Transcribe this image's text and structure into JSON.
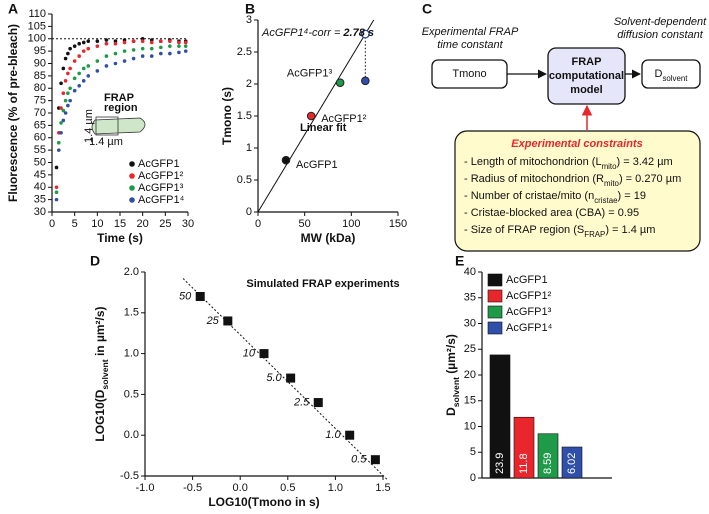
{
  "chart_data": [
    {
      "type": "scatter",
      "panel_label": "A",
      "x_label": "Time (s)",
      "y_label": "Fluorescence (% of pre-bleach)",
      "xlim": [
        0,
        30
      ],
      "xticks": [
        0,
        5,
        10,
        15,
        20,
        25,
        30
      ],
      "ylim": [
        30,
        110
      ],
      "yticks": [
        30,
        35,
        40,
        45,
        50,
        55,
        60,
        65,
        70,
        75,
        80,
        85,
        90,
        95,
        100,
        105,
        110
      ],
      "reference_line": 100,
      "x": [
        1,
        1.5,
        2,
        2.5,
        3,
        3.5,
        4,
        5,
        6,
        7,
        8,
        10,
        12,
        14,
        16,
        18,
        20,
        22,
        24,
        26,
        28,
        29.5
      ],
      "series": [
        {
          "name": "AcGFP1",
          "color": "#111111",
          "values": [
            48,
            72,
            82,
            88,
            92,
            94,
            96,
            97,
            98,
            98.5,
            99,
            99,
            99.5,
            99,
            99.5,
            99,
            100,
            99.5,
            99,
            99.5,
            99,
            99
          ]
        },
        {
          "name": "AcGFP1²",
          "color": "#e8262b",
          "values": [
            40,
            62,
            72,
            78,
            83,
            86,
            88,
            91,
            93,
            95,
            96,
            97,
            98,
            98,
            98.5,
            99,
            99,
            98.5,
            99,
            99,
            98.5,
            98.5
          ]
        },
        {
          "name": "AcGFP1³",
          "color": "#1f9a48",
          "values": [
            38,
            58,
            66,
            71,
            75,
            78,
            80,
            84,
            86,
            88,
            89,
            91,
            93,
            94,
            95,
            95.5,
            96,
            96,
            96.5,
            97,
            97,
            97
          ]
        },
        {
          "name": "AcGFP1⁴",
          "color": "#2f4fa8",
          "values": [
            35,
            55,
            62,
            67,
            70,
            73,
            75,
            79,
            81,
            83,
            85,
            87,
            89,
            90,
            91,
            92,
            93,
            93,
            94,
            94,
            94.5,
            95
          ]
        }
      ],
      "inset": {
        "title": [
          "FRAP",
          "region"
        ],
        "labels": [
          "1.4 µm",
          "1.4 µm"
        ]
      }
    },
    {
      "type": "scatter",
      "panel_label": "B",
      "x_label": "MW (kDa)",
      "y_label": "Tmono (s)",
      "xlim": [
        0,
        150
      ],
      "xticks": [
        0,
        50,
        100,
        150
      ],
      "ylim": [
        0,
        3
      ],
      "yticks": [
        0,
        0.5,
        1,
        1.5,
        2,
        2.5,
        3
      ],
      "series": [
        {
          "name": "AcGFP1",
          "color": "#111111",
          "x": [
            30
          ],
          "values": [
            0.81
          ]
        },
        {
          "name": "AcGFP1²",
          "color": "#e8262b",
          "x": [
            57
          ],
          "values": [
            1.5
          ]
        },
        {
          "name": "AcGFP1³",
          "color": "#1f9a48",
          "x": [
            88
          ],
          "values": [
            2.02
          ]
        },
        {
          "color": "#2f4fa8",
          "x": [
            115
          ],
          "values": [
            2.05
          ]
        }
      ],
      "corrected_point": {
        "x": [
          115
        ],
        "values": [
          2.78
        ],
        "color": "#2f4fa8"
      },
      "annotation": {
        "text": "AcGFP1⁴-corr =",
        "value": "2.78 s"
      },
      "fit": {
        "label": "Linear fit",
        "x": [
          0,
          124
        ],
        "values": [
          0,
          3
        ]
      }
    },
    {
      "type": "scatter",
      "panel_label": "D",
      "title": "Simulated FRAP experiments",
      "x_label": "LOG10(Tmono in s)",
      "y_label": [
        "LOG10(D",
        "solvent",
        " in µm²/s)"
      ],
      "xlim": [
        -1,
        1.5
      ],
      "xticks": [
        {
          "value": -1,
          "label": "-1.0"
        },
        -0.5,
        {
          "value": 0,
          "label": "0.0"
        },
        0.5,
        {
          "value": 1,
          "label": "1.0"
        },
        1.5
      ],
      "ylim": [
        -0.5,
        2
      ],
      "yticks": [
        -0.5,
        {
          "value": 0,
          "label": "0.0"
        },
        0.5,
        {
          "value": 1,
          "label": "1.0"
        },
        1.5,
        {
          "value": 2,
          "label": "2.0"
        }
      ],
      "marker": "square",
      "series": [
        {
          "color": "#111111",
          "x": [
            -0.42,
            -0.13,
            0.25,
            0.53,
            0.82,
            1.15,
            1.42
          ],
          "values": [
            1.7,
            1.4,
            1.0,
            0.7,
            0.4,
            0.0,
            -0.3
          ],
          "point_labels": [
            "50",
            "25",
            "10",
            "5.0",
            "2.5",
            "1.0",
            "0.5"
          ]
        }
      ],
      "fit": {
        "x": [
          -0.6,
          1.55
        ],
        "values": [
          1.92,
          -0.55
        ]
      }
    },
    {
      "type": "bar",
      "panel_label": "E",
      "y_label": [
        "D",
        "solvent",
        " (µm²/s)"
      ],
      "ylim": [
        0,
        40
      ],
      "yticks": [
        0,
        5,
        10,
        15,
        20,
        25,
        30,
        35,
        40
      ],
      "series": [
        {
          "name": "AcGFP1",
          "color": "#111111",
          "values": [
            23.9
          ]
        },
        {
          "name": "AcGFP1²",
          "color": "#e8262b",
          "values": [
            11.8
          ]
        },
        {
          "name": "AcGFP1³",
          "color": "#1f9a48",
          "values": [
            8.59
          ]
        },
        {
          "name": "AcGFP1⁴",
          "color": "#2f4fa8",
          "values": [
            6.02
          ]
        }
      ]
    }
  ],
  "diagram": {
    "panel_label": "C",
    "input_caption": [
      "Experimental FRAP",
      "time constant"
    ],
    "input": "Tmono",
    "model": [
      "FRAP",
      "computational",
      "model"
    ],
    "output_caption": [
      "Solvent-dependent",
      "diffusion constant"
    ],
    "output": [
      "D",
      "solvent"
    ],
    "constraints": {
      "title": "Experimental constraints",
      "items": [
        [
          "- Length of mitochondrion (L",
          "mito",
          ") = 3.42 µm"
        ],
        [
          "- Radius of mitochondrion (R",
          "mito",
          ") = 0.270 µm"
        ],
        [
          "- Number of cristae/mito (n",
          "cristae",
          ") = 19"
        ],
        [
          "- Cristae-blocked area (CBA) = 0.95"
        ],
        [
          "- Size of FRAP region (S",
          "FRAP",
          ") = 1.4 µm"
        ]
      ]
    }
  }
}
